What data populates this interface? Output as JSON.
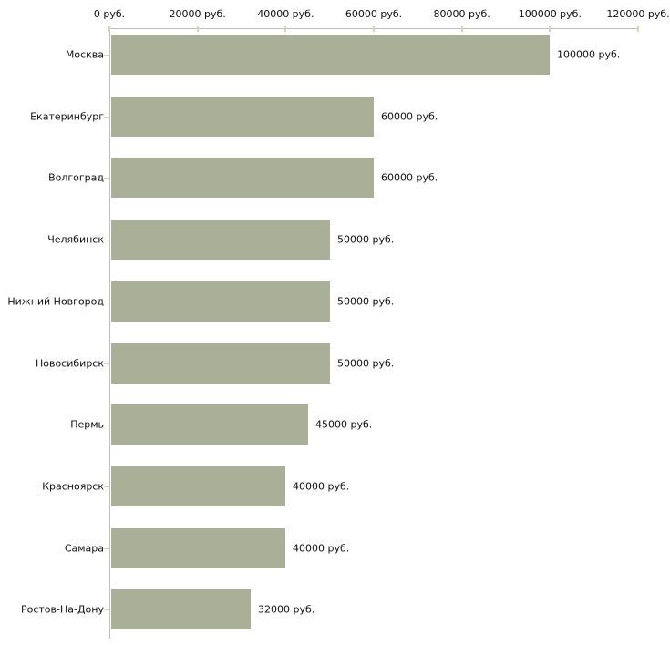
{
  "chart_data": {
    "type": "bar",
    "orientation": "horizontal",
    "title": "",
    "xlabel": "",
    "ylabel": "",
    "unit": "руб.",
    "categories": [
      "Москва",
      "Екатеринбург",
      "Волгоград",
      "Челябинск",
      "Нижний Новгород",
      "Новосибирск",
      "Пермь",
      "Красноярск",
      "Самара",
      "Ростов-На-Дону"
    ],
    "values": [
      100000,
      60000,
      60000,
      50000,
      50000,
      50000,
      45000,
      40000,
      40000,
      32000
    ],
    "value_labels": [
      "100000 руб.",
      "60000 руб.",
      "60000 руб.",
      "50000 руб.",
      "50000 руб.",
      "50000 руб.",
      "45000 руб.",
      "40000 руб.",
      "40000 руб.",
      "32000 руб."
    ],
    "x_axis": {
      "position": "top",
      "min": 0,
      "max": 120000,
      "tick_values": [
        0,
        20000,
        40000,
        60000,
        80000,
        100000,
        120000
      ],
      "tick_labels": [
        "0 руб.",
        "20000 руб.",
        "40000 руб.",
        "60000 руб.",
        "80000 руб.",
        "100000 руб.",
        "120000 руб."
      ]
    },
    "grid": false,
    "legend": false,
    "colors": {
      "bar": "#aab097",
      "axis": "#bfbfbf",
      "tick": "#d6d6b4",
      "text": "#111111",
      "background": "#ffffff"
    }
  }
}
